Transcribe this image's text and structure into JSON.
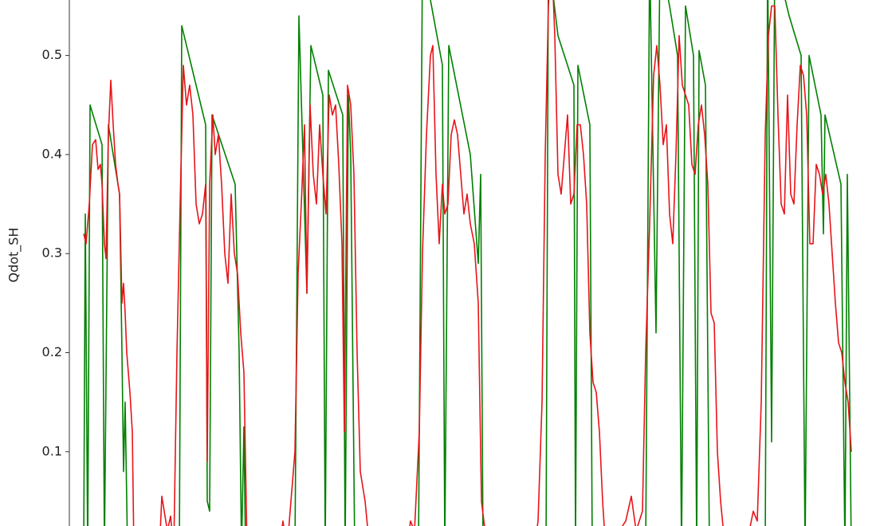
{
  "chart_data": {
    "type": "line",
    "y_label": "Qdot_SH",
    "xlim": [
      87,
      1077
    ],
    "ylim": [
      0.025,
      0.556
    ],
    "yticks": [
      0.1,
      0.2,
      0.3,
      0.4,
      0.5
    ],
    "series": [
      {
        "color": "#008000",
        "x": [
          105,
          107,
          110,
          113,
          128,
          131,
          136,
          150,
          153,
          155,
          157,
          160,
          225,
          228,
          258,
          260,
          263,
          266,
          295,
          300,
          303,
          306,
          308,
          370,
          375,
          385,
          390,
          405,
          408,
          412,
          430,
          433,
          437,
          440,
          445,
          525,
          530,
          555,
          558,
          563,
          590,
          600,
          603,
          606,
          685,
          688,
          700,
          720,
          722,
          725,
          740,
          743,
          810,
          815,
          823,
          828,
          840,
          850,
          855,
          860,
          870,
          874,
          877,
          885,
          890,
          960,
          963,
          968,
          972,
          990,
          1005,
          1010,
          1015,
          1030,
          1033,
          1035,
          1055,
          1060,
          1063,
          1068
        ],
        "values": [
          0,
          0.34,
          0,
          0.45,
          0.41,
          0,
          0.43,
          0.36,
          0.2,
          0.08,
          0.15,
          0,
          0,
          0.53,
          0.43,
          0.05,
          0.04,
          0.44,
          0.37,
          0.2,
          0,
          0.125,
          0,
          0,
          0.54,
          0.26,
          0.51,
          0.46,
          0,
          0.485,
          0.44,
          0,
          0.46,
          0.4,
          0,
          0,
          0.6,
          0.49,
          0,
          0.51,
          0.4,
          0.29,
          0.38,
          0,
          0,
          0.6,
          0.52,
          0.47,
          0,
          0.49,
          0.43,
          0,
          0,
          0.6,
          0.22,
          0.6,
          0.55,
          0.5,
          0,
          0.55,
          0.5,
          0,
          0.505,
          0.47,
          0,
          0,
          0.6,
          0.11,
          0.6,
          0.54,
          0.5,
          0,
          0.5,
          0.44,
          0.32,
          0.44,
          0.37,
          0,
          0.38,
          0
        ]
      },
      {
        "color": "#e8141a",
        "x": [
          105,
          108,
          112,
          116,
          120,
          123,
          126,
          128,
          131,
          133,
          136,
          139,
          142,
          145,
          148,
          150,
          153,
          155,
          157,
          159,
          163,
          166,
          168,
          200,
          203,
          206,
          210,
          214,
          218,
          222,
          226,
          230,
          234,
          238,
          242,
          246,
          250,
          254,
          258,
          260,
          263,
          267,
          270,
          274,
          278,
          282,
          286,
          290,
          294,
          298,
          302,
          306,
          310,
          350,
          355,
          360,
          366,
          370,
          374,
          378,
          382,
          385,
          389,
          393,
          397,
          401,
          405,
          409,
          413,
          417,
          421,
          425,
          429,
          432,
          436,
          440,
          444,
          448,
          452,
          458,
          464,
          510,
          515,
          520,
          526,
          530,
          535,
          540,
          543,
          547,
          551,
          555,
          558,
          562,
          566,
          570,
          574,
          578,
          582,
          586,
          590,
          595,
          600,
          604,
          607,
          612,
          670,
          675,
          680,
          684,
          688,
          692,
          696,
          700,
          704,
          708,
          712,
          716,
          720,
          724,
          728,
          732,
          736,
          740,
          744,
          748,
          752,
          756,
          760,
          785,
          792,
          798,
          806,
          810,
          815,
          820,
          824,
          828,
          832,
          836,
          840,
          844,
          848,
          852,
          856,
          860,
          864,
          868,
          872,
          876,
          880,
          884,
          888,
          892,
          896,
          900,
          904,
          910,
          940,
          945,
          950,
          955,
          960,
          964,
          968,
          972,
          976,
          980,
          984,
          988,
          992,
          996,
          1000,
          1004,
          1008,
          1012,
          1016,
          1020,
          1024,
          1028,
          1032,
          1036,
          1040,
          1044,
          1048,
          1052,
          1056,
          1060,
          1064,
          1068
        ],
        "values": [
          0.32,
          0.31,
          0.35,
          0.41,
          0.415,
          0.385,
          0.39,
          0.37,
          0.31,
          0.295,
          0.42,
          0.475,
          0.43,
          0.39,
          0.37,
          0.36,
          0.25,
          0.27,
          0.24,
          0.2,
          0.16,
          0.12,
          0,
          0,
          0.055,
          0.04,
          0.02,
          0.035,
          0,
          0.2,
          0.35,
          0.49,
          0.45,
          0.47,
          0.44,
          0.35,
          0.33,
          0.34,
          0.37,
          0.09,
          0.37,
          0.44,
          0.4,
          0.42,
          0.37,
          0.3,
          0.27,
          0.36,
          0.3,
          0.28,
          0.22,
          0.18,
          0,
          0,
          0.03,
          0,
          0.06,
          0.1,
          0.28,
          0.35,
          0.43,
          0.26,
          0.45,
          0.38,
          0.35,
          0.43,
          0.38,
          0.34,
          0.46,
          0.44,
          0.45,
          0.39,
          0.31,
          0.12,
          0.47,
          0.45,
          0.38,
          0.2,
          0.08,
          0.05,
          0,
          0,
          0.03,
          0.02,
          0.12,
          0.3,
          0.42,
          0.5,
          0.51,
          0.38,
          0.31,
          0.37,
          0.34,
          0.35,
          0.42,
          0.435,
          0.42,
          0.38,
          0.34,
          0.36,
          0.33,
          0.31,
          0.25,
          0.05,
          0.03,
          0,
          0,
          0.03,
          0.15,
          0.4,
          0.55,
          0.6,
          0.52,
          0.38,
          0.36,
          0.4,
          0.44,
          0.35,
          0.36,
          0.43,
          0.43,
          0.4,
          0.35,
          0.22,
          0.17,
          0.16,
          0.12,
          0.05,
          0,
          0.03,
          0.055,
          0.02,
          0.04,
          0.2,
          0.33,
          0.48,
          0.51,
          0.47,
          0.41,
          0.43,
          0.34,
          0.31,
          0.4,
          0.52,
          0.47,
          0.46,
          0.45,
          0.39,
          0.38,
          0.43,
          0.45,
          0.42,
          0.37,
          0.24,
          0.23,
          0.1,
          0.05,
          0,
          0.02,
          0.04,
          0.03,
          0.15,
          0.42,
          0.52,
          0.55,
          0.55,
          0.44,
          0.35,
          0.34,
          0.46,
          0.36,
          0.35,
          0.43,
          0.49,
          0.48,
          0.44,
          0.31,
          0.31,
          0.39,
          0.38,
          0.36,
          0.38,
          0.35,
          0.3,
          0.25,
          0.21,
          0.2,
          0.17,
          0.15,
          0.1
        ]
      }
    ]
  }
}
